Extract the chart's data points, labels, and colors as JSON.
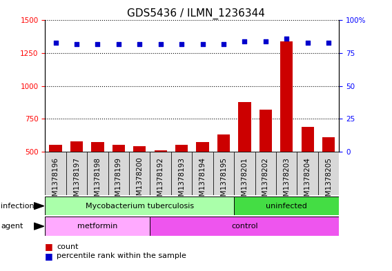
{
  "title": "GDS5436 / ILMN_1236344",
  "samples": [
    "GSM1378196",
    "GSM1378197",
    "GSM1378198",
    "GSM1378199",
    "GSM1378200",
    "GSM1378192",
    "GSM1378193",
    "GSM1378194",
    "GSM1378195",
    "GSM1378201",
    "GSM1378202",
    "GSM1378203",
    "GSM1378204",
    "GSM1378205"
  ],
  "counts": [
    555,
    580,
    575,
    555,
    545,
    510,
    555,
    575,
    630,
    880,
    820,
    1340,
    690,
    610
  ],
  "percentiles": [
    83,
    82,
    82,
    82,
    82,
    82,
    82,
    82,
    82,
    84,
    84,
    86,
    83,
    83
  ],
  "ylim_left": [
    500,
    1500
  ],
  "ylim_right": [
    0,
    100
  ],
  "yticks_left": [
    500,
    750,
    1000,
    1250,
    1500
  ],
  "yticks_right": [
    0,
    25,
    50,
    75,
    100
  ],
  "infection_groups": [
    {
      "label": "Mycobacterium tuberculosis",
      "start": 0,
      "end": 9,
      "color": "#AAFFAA"
    },
    {
      "label": "uninfected",
      "start": 9,
      "end": 14,
      "color": "#44DD44"
    }
  ],
  "agent_groups": [
    {
      "label": "metformin",
      "start": 0,
      "end": 5,
      "color": "#FFAAFF"
    },
    {
      "label": "control",
      "start": 5,
      "end": 14,
      "color": "#EE55EE"
    }
  ],
  "bar_color": "#CC0000",
  "dot_color": "#0000CC",
  "bar_width": 0.6,
  "grid_color": "#000000",
  "plot_bg": "#FFFFFF",
  "label_bg": "#D8D8D8",
  "title_fontsize": 11,
  "tick_fontsize": 7.5,
  "label_fontsize": 8
}
